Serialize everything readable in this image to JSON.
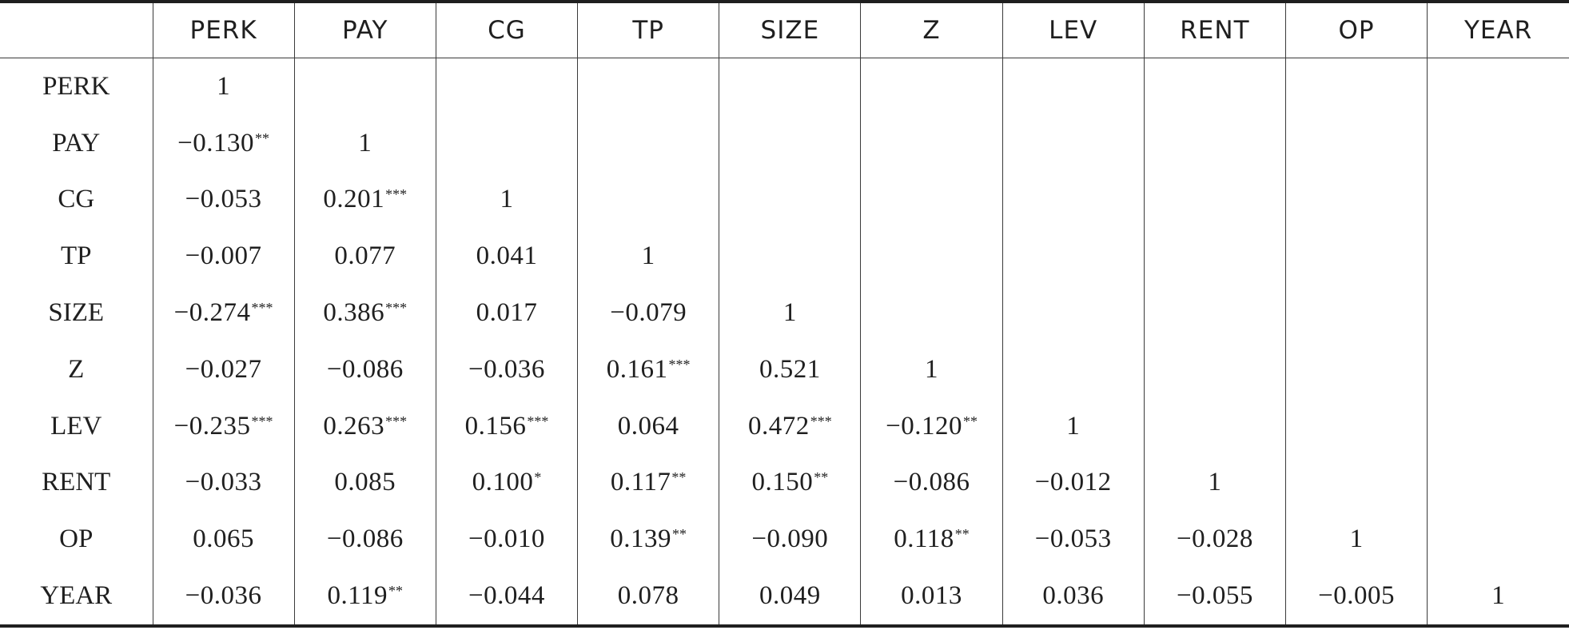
{
  "table": {
    "corner": "",
    "headers": [
      "PERK",
      "PAY",
      "CG",
      "TP",
      "SIZE",
      "Z",
      "LEV",
      "RENT",
      "OP",
      "YEAR"
    ],
    "rows": [
      {
        "label": "PERK",
        "cells": [
          [
            "1",
            ""
          ],
          [
            "",
            ""
          ],
          [
            "",
            ""
          ],
          [
            "",
            ""
          ],
          [
            "",
            ""
          ],
          [
            "",
            ""
          ],
          [
            "",
            ""
          ],
          [
            "",
            ""
          ],
          [
            "",
            ""
          ],
          [
            "",
            ""
          ]
        ]
      },
      {
        "label": "PAY",
        "cells": [
          [
            "−0.130",
            "**"
          ],
          [
            "1",
            ""
          ],
          [
            "",
            ""
          ],
          [
            "",
            ""
          ],
          [
            "",
            ""
          ],
          [
            "",
            ""
          ],
          [
            "",
            ""
          ],
          [
            "",
            ""
          ],
          [
            "",
            ""
          ],
          [
            "",
            ""
          ]
        ]
      },
      {
        "label": "CG",
        "cells": [
          [
            "−0.053",
            ""
          ],
          [
            "0.201",
            "***"
          ],
          [
            "1",
            ""
          ],
          [
            "",
            ""
          ],
          [
            "",
            ""
          ],
          [
            "",
            ""
          ],
          [
            "",
            ""
          ],
          [
            "",
            ""
          ],
          [
            "",
            ""
          ],
          [
            "",
            ""
          ]
        ]
      },
      {
        "label": "TP",
        "cells": [
          [
            "−0.007",
            ""
          ],
          [
            "0.077",
            ""
          ],
          [
            "0.041",
            ""
          ],
          [
            "1",
            ""
          ],
          [
            "",
            ""
          ],
          [
            "",
            ""
          ],
          [
            "",
            ""
          ],
          [
            "",
            ""
          ],
          [
            "",
            ""
          ],
          [
            "",
            ""
          ]
        ]
      },
      {
        "label": "SIZE",
        "cells": [
          [
            "−0.274",
            "***"
          ],
          [
            "0.386",
            "***"
          ],
          [
            "0.017",
            ""
          ],
          [
            "−0.079",
            ""
          ],
          [
            "1",
            ""
          ],
          [
            "",
            ""
          ],
          [
            "",
            ""
          ],
          [
            "",
            ""
          ],
          [
            "",
            ""
          ],
          [
            "",
            ""
          ]
        ]
      },
      {
        "label": "Z",
        "cells": [
          [
            "−0.027",
            ""
          ],
          [
            "−0.086",
            ""
          ],
          [
            "−0.036",
            ""
          ],
          [
            "0.161",
            "***"
          ],
          [
            "0.521",
            ""
          ],
          [
            "1",
            ""
          ],
          [
            "",
            ""
          ],
          [
            "",
            ""
          ],
          [
            "",
            ""
          ],
          [
            "",
            ""
          ]
        ]
      },
      {
        "label": "LEV",
        "cells": [
          [
            "−0.235",
            "***"
          ],
          [
            "0.263",
            "***"
          ],
          [
            "0.156",
            "***"
          ],
          [
            "0.064",
            ""
          ],
          [
            "0.472",
            "***"
          ],
          [
            "−0.120",
            "**"
          ],
          [
            "1",
            ""
          ],
          [
            "",
            ""
          ],
          [
            "",
            ""
          ],
          [
            "",
            ""
          ]
        ]
      },
      {
        "label": "RENT",
        "cells": [
          [
            "−0.033",
            ""
          ],
          [
            "0.085",
            ""
          ],
          [
            "0.100",
            "*"
          ],
          [
            "0.117",
            "**"
          ],
          [
            "0.150",
            "**"
          ],
          [
            "−0.086",
            ""
          ],
          [
            "−0.012",
            ""
          ],
          [
            "1",
            ""
          ],
          [
            "",
            ""
          ],
          [
            "",
            ""
          ]
        ]
      },
      {
        "label": "OP",
        "cells": [
          [
            "0.065",
            ""
          ],
          [
            "−0.086",
            ""
          ],
          [
            "−0.010",
            ""
          ],
          [
            "0.139",
            "**"
          ],
          [
            "−0.090",
            ""
          ],
          [
            "0.118",
            "**"
          ],
          [
            "−0.053",
            ""
          ],
          [
            "−0.028",
            ""
          ],
          [
            "1",
            ""
          ],
          [
            "",
            ""
          ]
        ]
      },
      {
        "label": "YEAR",
        "cells": [
          [
            "−0.036",
            ""
          ],
          [
            "0.119",
            "**"
          ],
          [
            "−0.044",
            ""
          ],
          [
            "0.078",
            ""
          ],
          [
            "0.049",
            ""
          ],
          [
            "0.013",
            ""
          ],
          [
            "0.036",
            ""
          ],
          [
            "−0.055",
            ""
          ],
          [
            "−0.005",
            ""
          ],
          [
            "1",
            ""
          ]
        ]
      }
    ]
  }
}
